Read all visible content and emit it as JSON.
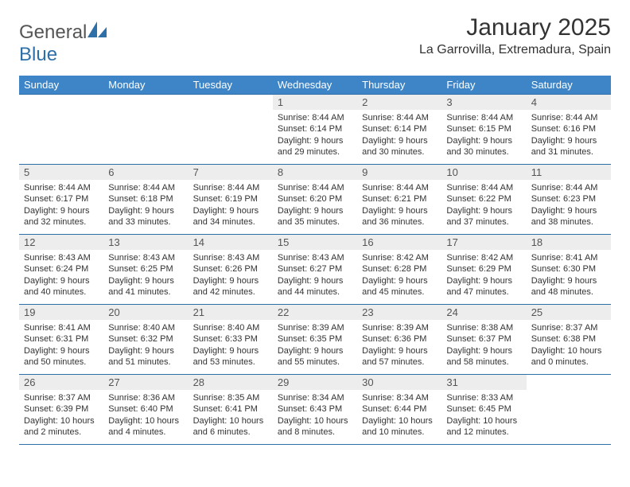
{
  "brand": {
    "part1": "General",
    "part2": "Blue"
  },
  "title": "January 2025",
  "location": "La Garrovilla, Extremadura, Spain",
  "colors": {
    "header_bg": "#3d85c6",
    "header_text": "#ffffff",
    "border": "#2f6fa8",
    "daynum_bg": "#ededed",
    "text": "#333333"
  },
  "weekdays": [
    "Sunday",
    "Monday",
    "Tuesday",
    "Wednesday",
    "Thursday",
    "Friday",
    "Saturday"
  ],
  "weeks": [
    [
      null,
      null,
      null,
      {
        "n": "1",
        "sr": "8:44 AM",
        "ss": "6:14 PM",
        "dl": "9 hours and 29 minutes."
      },
      {
        "n": "2",
        "sr": "8:44 AM",
        "ss": "6:14 PM",
        "dl": "9 hours and 30 minutes."
      },
      {
        "n": "3",
        "sr": "8:44 AM",
        "ss": "6:15 PM",
        "dl": "9 hours and 30 minutes."
      },
      {
        "n": "4",
        "sr": "8:44 AM",
        "ss": "6:16 PM",
        "dl": "9 hours and 31 minutes."
      }
    ],
    [
      {
        "n": "5",
        "sr": "8:44 AM",
        "ss": "6:17 PM",
        "dl": "9 hours and 32 minutes."
      },
      {
        "n": "6",
        "sr": "8:44 AM",
        "ss": "6:18 PM",
        "dl": "9 hours and 33 minutes."
      },
      {
        "n": "7",
        "sr": "8:44 AM",
        "ss": "6:19 PM",
        "dl": "9 hours and 34 minutes."
      },
      {
        "n": "8",
        "sr": "8:44 AM",
        "ss": "6:20 PM",
        "dl": "9 hours and 35 minutes."
      },
      {
        "n": "9",
        "sr": "8:44 AM",
        "ss": "6:21 PM",
        "dl": "9 hours and 36 minutes."
      },
      {
        "n": "10",
        "sr": "8:44 AM",
        "ss": "6:22 PM",
        "dl": "9 hours and 37 minutes."
      },
      {
        "n": "11",
        "sr": "8:44 AM",
        "ss": "6:23 PM",
        "dl": "9 hours and 38 minutes."
      }
    ],
    [
      {
        "n": "12",
        "sr": "8:43 AM",
        "ss": "6:24 PM",
        "dl": "9 hours and 40 minutes."
      },
      {
        "n": "13",
        "sr": "8:43 AM",
        "ss": "6:25 PM",
        "dl": "9 hours and 41 minutes."
      },
      {
        "n": "14",
        "sr": "8:43 AM",
        "ss": "6:26 PM",
        "dl": "9 hours and 42 minutes."
      },
      {
        "n": "15",
        "sr": "8:43 AM",
        "ss": "6:27 PM",
        "dl": "9 hours and 44 minutes."
      },
      {
        "n": "16",
        "sr": "8:42 AM",
        "ss": "6:28 PM",
        "dl": "9 hours and 45 minutes."
      },
      {
        "n": "17",
        "sr": "8:42 AM",
        "ss": "6:29 PM",
        "dl": "9 hours and 47 minutes."
      },
      {
        "n": "18",
        "sr": "8:41 AM",
        "ss": "6:30 PM",
        "dl": "9 hours and 48 minutes."
      }
    ],
    [
      {
        "n": "19",
        "sr": "8:41 AM",
        "ss": "6:31 PM",
        "dl": "9 hours and 50 minutes."
      },
      {
        "n": "20",
        "sr": "8:40 AM",
        "ss": "6:32 PM",
        "dl": "9 hours and 51 minutes."
      },
      {
        "n": "21",
        "sr": "8:40 AM",
        "ss": "6:33 PM",
        "dl": "9 hours and 53 minutes."
      },
      {
        "n": "22",
        "sr": "8:39 AM",
        "ss": "6:35 PM",
        "dl": "9 hours and 55 minutes."
      },
      {
        "n": "23",
        "sr": "8:39 AM",
        "ss": "6:36 PM",
        "dl": "9 hours and 57 minutes."
      },
      {
        "n": "24",
        "sr": "8:38 AM",
        "ss": "6:37 PM",
        "dl": "9 hours and 58 minutes."
      },
      {
        "n": "25",
        "sr": "8:37 AM",
        "ss": "6:38 PM",
        "dl": "10 hours and 0 minutes."
      }
    ],
    [
      {
        "n": "26",
        "sr": "8:37 AM",
        "ss": "6:39 PM",
        "dl": "10 hours and 2 minutes."
      },
      {
        "n": "27",
        "sr": "8:36 AM",
        "ss": "6:40 PM",
        "dl": "10 hours and 4 minutes."
      },
      {
        "n": "28",
        "sr": "8:35 AM",
        "ss": "6:41 PM",
        "dl": "10 hours and 6 minutes."
      },
      {
        "n": "29",
        "sr": "8:34 AM",
        "ss": "6:43 PM",
        "dl": "10 hours and 8 minutes."
      },
      {
        "n": "30",
        "sr": "8:34 AM",
        "ss": "6:44 PM",
        "dl": "10 hours and 10 minutes."
      },
      {
        "n": "31",
        "sr": "8:33 AM",
        "ss": "6:45 PM",
        "dl": "10 hours and 12 minutes."
      },
      null
    ]
  ],
  "labels": {
    "sunrise": "Sunrise:",
    "sunset": "Sunset:",
    "daylight": "Daylight:"
  }
}
